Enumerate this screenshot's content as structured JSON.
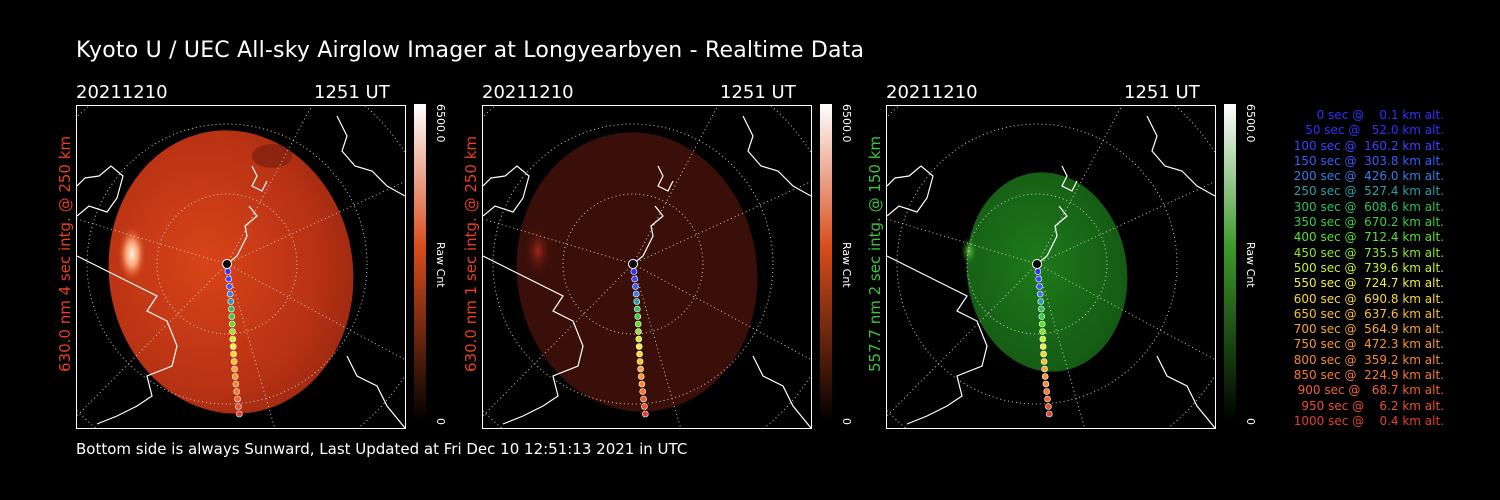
{
  "title": "Kyoto U / UEC All-sky Airglow Imager at Longyearbyen - Realtime Data",
  "footer": "Bottom side is always Sunward, Last Updated at Fri Dec 10 12:51:13 2021 in UTC",
  "panels": [
    {
      "date": "20211210",
      "time": "1251 UT",
      "ylabel": "630.0 nm 4 sec intg. @ 250 km",
      "ylabel_color": "#e8401e",
      "cbar_max": "6500.0",
      "cbar_min": "0",
      "cbar_unit": "Raw Cnt",
      "cbar_color": "#d94c1a"
    },
    {
      "date": "20211210",
      "time": "1251 UT",
      "ylabel": "630.0 nm 1 sec intg. @ 250 km",
      "ylabel_color": "#e8401e",
      "cbar_max": "6500.0",
      "cbar_min": "0",
      "cbar_unit": "Raw Cnt",
      "cbar_color": "#d94c1a"
    },
    {
      "date": "20211210",
      "time": "1251 UT",
      "ylabel": "557.7 nm 2 sec intg. @ 150 km",
      "ylabel_color": "#3ec43a",
      "cbar_max": "6500.0",
      "cbar_min": "0",
      "cbar_unit": "Raw Cnt",
      "cbar_color": "#3a9a28"
    }
  ],
  "legend": [
    {
      "text": "   0 sec @    0.1 km alt.",
      "color": "#3030ff"
    },
    {
      "text": "  50 sec @   52.0 km alt.",
      "color": "#3030ff"
    },
    {
      "text": " 100 sec @  160.2 km alt.",
      "color": "#3a44ff"
    },
    {
      "text": " 150 sec @  303.8 km alt.",
      "color": "#3a5cff"
    },
    {
      "text": " 200 sec @  426.0 km alt.",
      "color": "#3a7ce8"
    },
    {
      "text": " 250 sec @  527.4 km alt.",
      "color": "#2aa0a8"
    },
    {
      "text": " 300 sec @  608.6 km alt.",
      "color": "#2cc060"
    },
    {
      "text": " 350 sec @  670.2 km alt.",
      "color": "#38d040"
    },
    {
      "text": " 400 sec @  712.4 km alt.",
      "color": "#58e030"
    },
    {
      "text": " 450 sec @  735.5 km alt.",
      "color": "#90e830"
    },
    {
      "text": " 500 sec @  739.6 km alt.",
      "color": "#c8f030"
    },
    {
      "text": " 550 sec @  724.7 km alt.",
      "color": "#f0f040"
    },
    {
      "text": " 600 sec @  690.8 km alt.",
      "color": "#f8d838"
    },
    {
      "text": " 650 sec @  637.6 km alt.",
      "color": "#f8c030"
    },
    {
      "text": " 700 sec @  564.9 km alt.",
      "color": "#f8a830"
    },
    {
      "text": " 750 sec @  472.3 km alt.",
      "color": "#f89830"
    },
    {
      "text": " 800 sec @  359.2 km alt.",
      "color": "#f88830"
    },
    {
      "text": " 850 sec @  224.9 km alt.",
      "color": "#f87830"
    },
    {
      "text": " 900 sec @   68.7 km alt.",
      "color": "#f06030"
    },
    {
      "text": " 950 sec @    6.2 km alt.",
      "color": "#e85030"
    },
    {
      "text": "1000 sec @    0.4 km alt.",
      "color": "#e04030"
    }
  ]
}
